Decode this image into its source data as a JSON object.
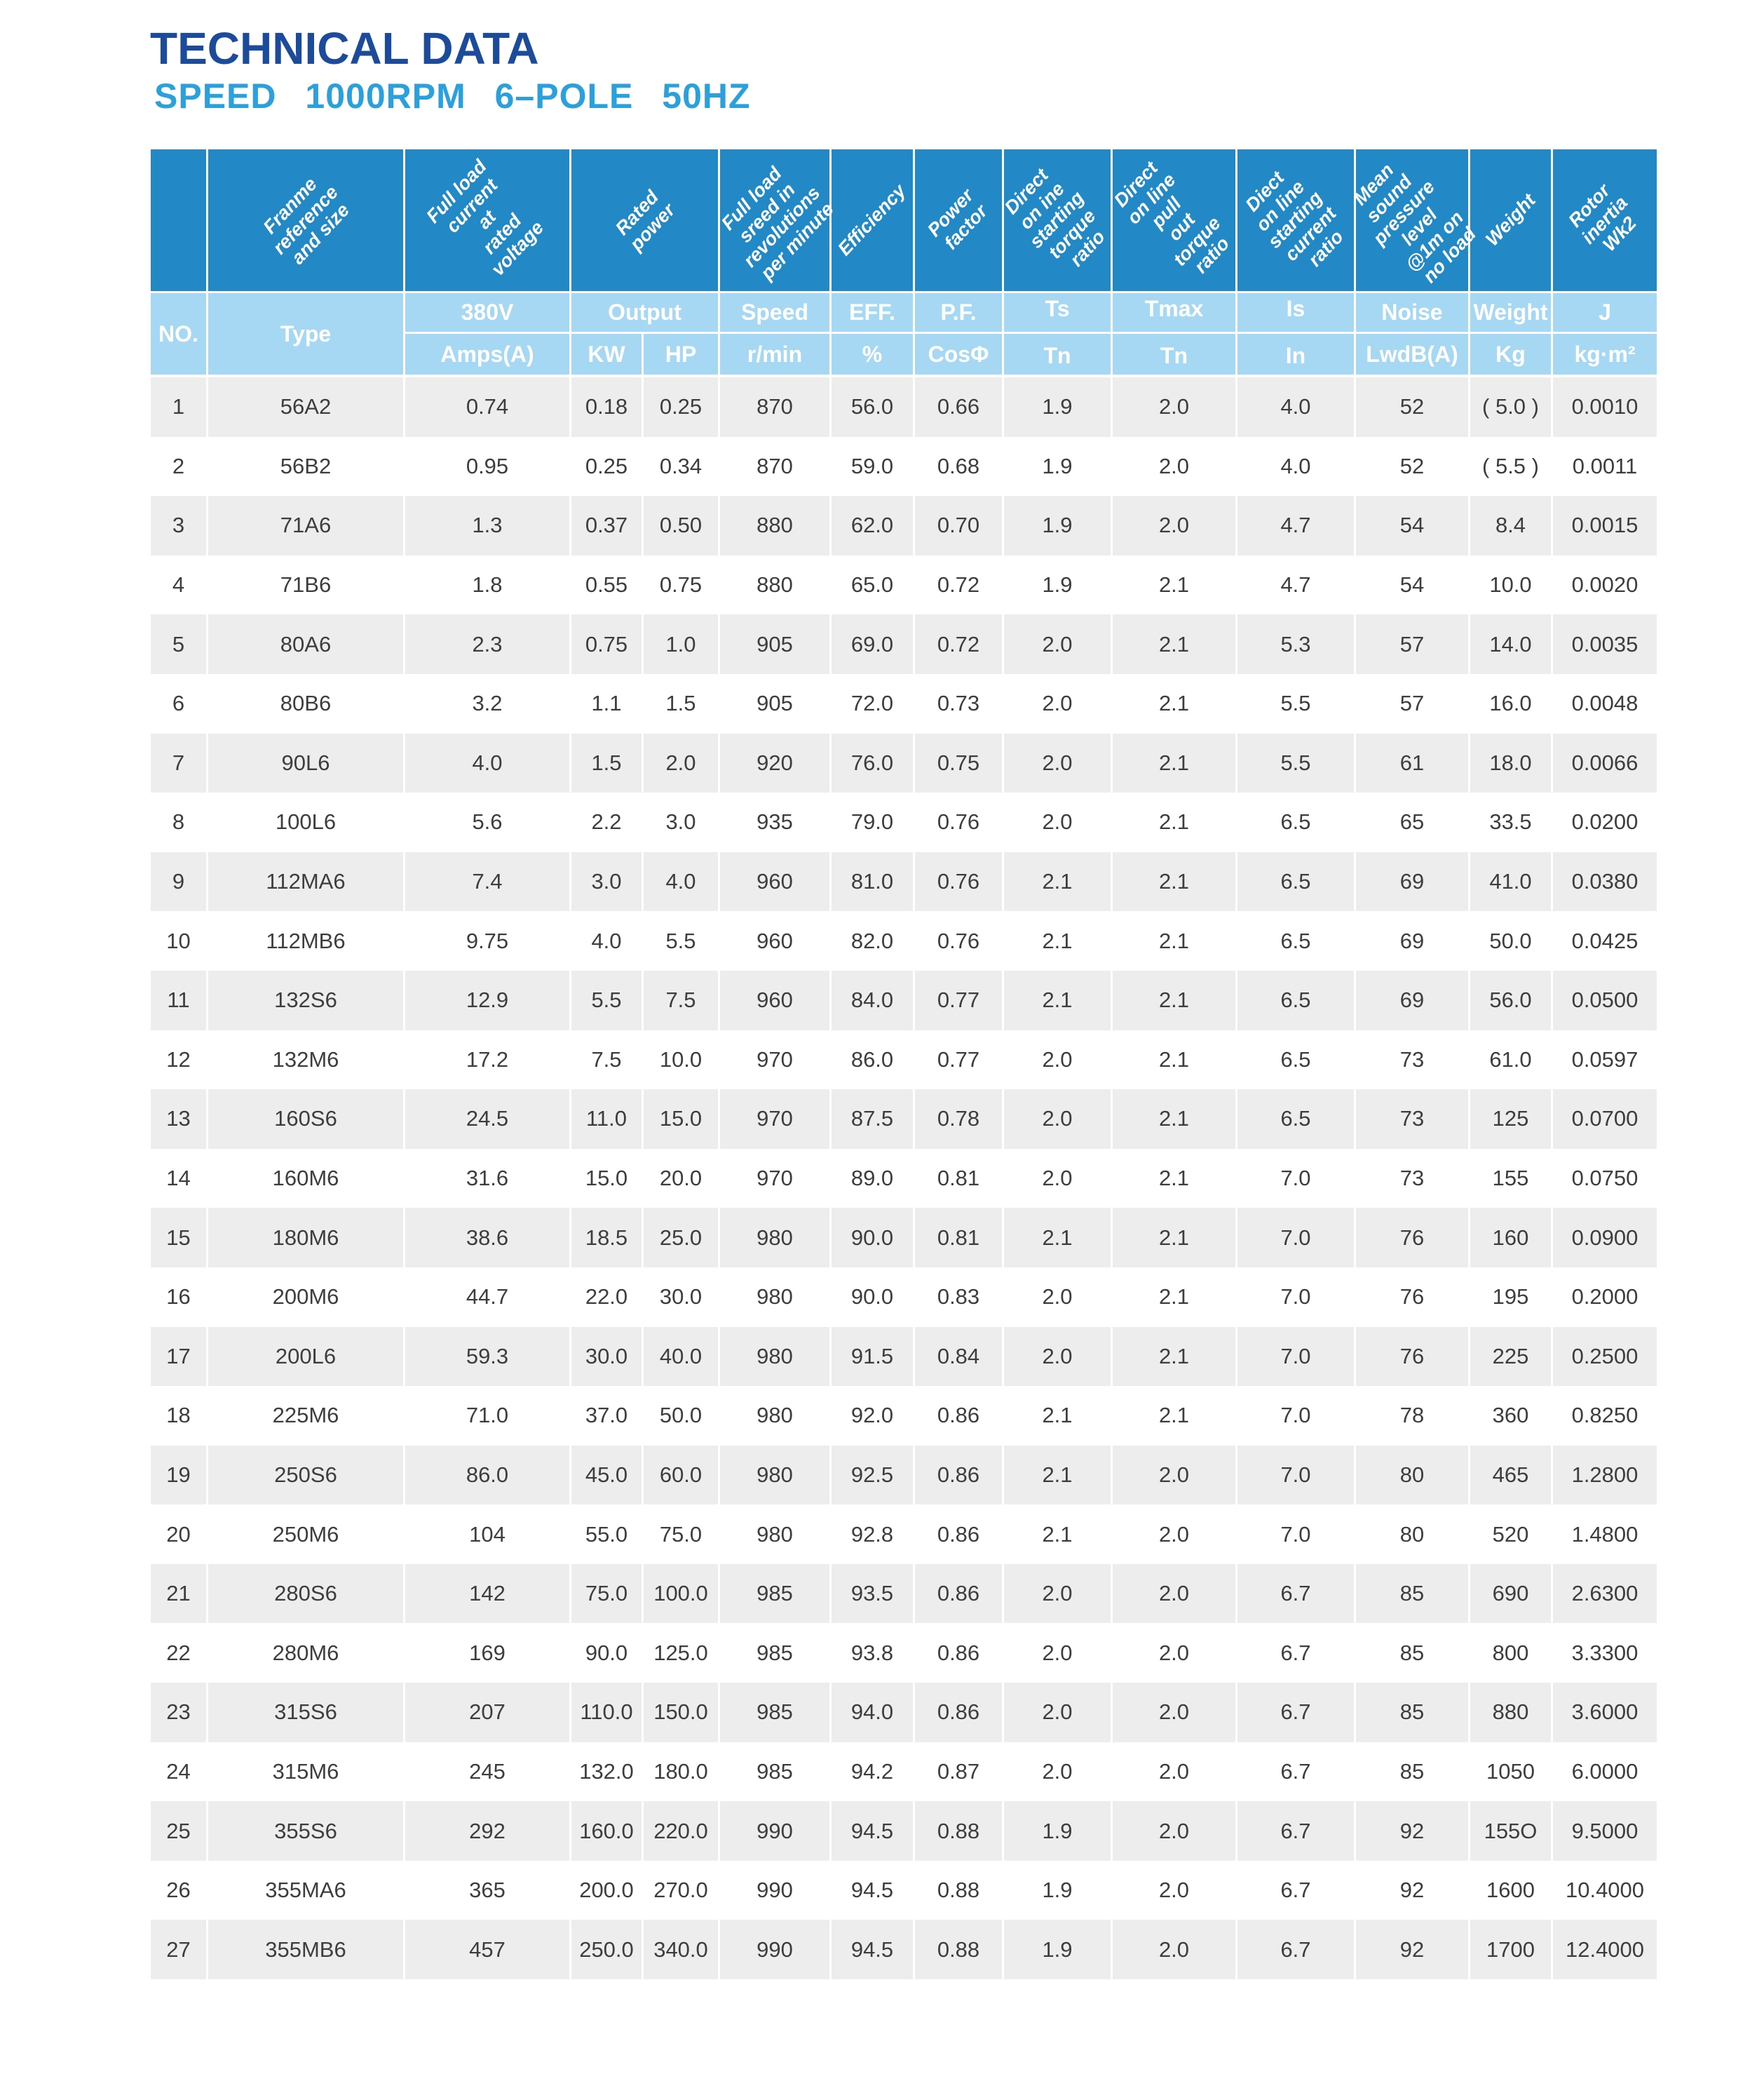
{
  "title": "TECHNICAL DATA",
  "subtitle": "SPEED 1000RPM 6–POLE 50HZ",
  "colors": {
    "title_blue": "#1c4b9c",
    "subtitle_blue": "#2aa0dc",
    "header_band_blue": "#2389c6",
    "subheader_light_blue": "#a6d8f3",
    "row_alt_gray": "#eeedee",
    "data_text": "#3d3d3d"
  },
  "table": {
    "corner": {
      "no": "NO.",
      "type": "Type"
    },
    "diagonal_headers": [
      "Franme reference\nand size",
      "Full load current at\nrated voltage",
      "Rated power",
      "Full load sreed in\nrevolutions\nper minute",
      "Efficiency",
      "Power factor",
      "Direct on ine\nstarting torque\nratio",
      "Direct on line\npull out torque\nratio",
      "Diect on line\nstarting current\nratio",
      "Mean sound\npressure\nlevel @1m on\nno load",
      "Weight",
      "Rotor inertia Wk2"
    ],
    "group_row": [
      "380V",
      "Output",
      "Speed",
      "EFF.",
      "P.F.",
      "Ts",
      "Tmax",
      "Is",
      "Noise",
      "Weight",
      "J"
    ],
    "unit_row": [
      "Amps(A)",
      "KW",
      "HP",
      "r/min",
      "%",
      "CosΦ",
      "Tn",
      "Tn",
      "In",
      "LwdB(A)",
      "Kg",
      "kg·m²"
    ],
    "rows": [
      [
        "1",
        "56A2",
        "0.74",
        "0.18",
        "0.25",
        "870",
        "56.0",
        "0.66",
        "1.9",
        "2.0",
        "4.0",
        "52",
        "( 5.0 )",
        "0.0010"
      ],
      [
        "2",
        "56B2",
        "0.95",
        "0.25",
        "0.34",
        "870",
        "59.0",
        "0.68",
        "1.9",
        "2.0",
        "4.0",
        "52",
        "( 5.5 )",
        "0.0011"
      ],
      [
        "3",
        "71A6",
        "1.3",
        "0.37",
        "0.50",
        "880",
        "62.0",
        "0.70",
        "1.9",
        "2.0",
        "4.7",
        "54",
        "8.4",
        "0.0015"
      ],
      [
        "4",
        "71B6",
        "1.8",
        "0.55",
        "0.75",
        "880",
        "65.0",
        "0.72",
        "1.9",
        "2.1",
        "4.7",
        "54",
        "10.0",
        "0.0020"
      ],
      [
        "5",
        "80A6",
        "2.3",
        "0.75",
        "1.0",
        "905",
        "69.0",
        "0.72",
        "2.0",
        "2.1",
        "5.3",
        "57",
        "14.0",
        "0.0035"
      ],
      [
        "6",
        "80B6",
        "3.2",
        "1.1",
        "1.5",
        "905",
        "72.0",
        "0.73",
        "2.0",
        "2.1",
        "5.5",
        "57",
        "16.0",
        "0.0048"
      ],
      [
        "7",
        "90L6",
        "4.0",
        "1.5",
        "2.0",
        "920",
        "76.0",
        "0.75",
        "2.0",
        "2.1",
        "5.5",
        "61",
        "18.0",
        "0.0066"
      ],
      [
        "8",
        "100L6",
        "5.6",
        "2.2",
        "3.0",
        "935",
        "79.0",
        "0.76",
        "2.0",
        "2.1",
        "6.5",
        "65",
        "33.5",
        "0.0200"
      ],
      [
        "9",
        "112MA6",
        "7.4",
        "3.0",
        "4.0",
        "960",
        "81.0",
        "0.76",
        "2.1",
        "2.1",
        "6.5",
        "69",
        "41.0",
        "0.0380"
      ],
      [
        "10",
        "112MB6",
        "9.75",
        "4.0",
        "5.5",
        "960",
        "82.0",
        "0.76",
        "2.1",
        "2.1",
        "6.5",
        "69",
        "50.0",
        "0.0425"
      ],
      [
        "11",
        "132S6",
        "12.9",
        "5.5",
        "7.5",
        "960",
        "84.0",
        "0.77",
        "2.1",
        "2.1",
        "6.5",
        "69",
        "56.0",
        "0.0500"
      ],
      [
        "12",
        "132M6",
        "17.2",
        "7.5",
        "10.0",
        "970",
        "86.0",
        "0.77",
        "2.0",
        "2.1",
        "6.5",
        "73",
        "61.0",
        "0.0597"
      ],
      [
        "13",
        "160S6",
        "24.5",
        "11.0",
        "15.0",
        "970",
        "87.5",
        "0.78",
        "2.0",
        "2.1",
        "6.5",
        "73",
        "125",
        "0.0700"
      ],
      [
        "14",
        "160M6",
        "31.6",
        "15.0",
        "20.0",
        "970",
        "89.0",
        "0.81",
        "2.0",
        "2.1",
        "7.0",
        "73",
        "155",
        "0.0750"
      ],
      [
        "15",
        "180M6",
        "38.6",
        "18.5",
        "25.0",
        "980",
        "90.0",
        "0.81",
        "2.1",
        "2.1",
        "7.0",
        "76",
        "160",
        "0.0900"
      ],
      [
        "16",
        "200M6",
        "44.7",
        "22.0",
        "30.0",
        "980",
        "90.0",
        "0.83",
        "2.0",
        "2.1",
        "7.0",
        "76",
        "195",
        "0.2000"
      ],
      [
        "17",
        "200L6",
        "59.3",
        "30.0",
        "40.0",
        "980",
        "91.5",
        "0.84",
        "2.0",
        "2.1",
        "7.0",
        "76",
        "225",
        "0.2500"
      ],
      [
        "18",
        "225M6",
        "71.0",
        "37.0",
        "50.0",
        "980",
        "92.0",
        "0.86",
        "2.1",
        "2.1",
        "7.0",
        "78",
        "360",
        "0.8250"
      ],
      [
        "19",
        "250S6",
        "86.0",
        "45.0",
        "60.0",
        "980",
        "92.5",
        "0.86",
        "2.1",
        "2.0",
        "7.0",
        "80",
        "465",
        "1.2800"
      ],
      [
        "20",
        "250M6",
        "104",
        "55.0",
        "75.0",
        "980",
        "92.8",
        "0.86",
        "2.1",
        "2.0",
        "7.0",
        "80",
        "520",
        "1.4800"
      ],
      [
        "21",
        "280S6",
        "142",
        "75.0",
        "100.0",
        "985",
        "93.5",
        "0.86",
        "2.0",
        "2.0",
        "6.7",
        "85",
        "690",
        "2.6300"
      ],
      [
        "22",
        "280M6",
        "169",
        "90.0",
        "125.0",
        "985",
        "93.8",
        "0.86",
        "2.0",
        "2.0",
        "6.7",
        "85",
        "800",
        "3.3300"
      ],
      [
        "23",
        "315S6",
        "207",
        "110.0",
        "150.0",
        "985",
        "94.0",
        "0.86",
        "2.0",
        "2.0",
        "6.7",
        "85",
        "880",
        "3.6000"
      ],
      [
        "24",
        "315M6",
        "245",
        "132.0",
        "180.0",
        "985",
        "94.2",
        "0.87",
        "2.0",
        "2.0",
        "6.7",
        "85",
        "1050",
        "6.0000"
      ],
      [
        "25",
        "355S6",
        "292",
        "160.0",
        "220.0",
        "990",
        "94.5",
        "0.88",
        "1.9",
        "2.0",
        "6.7",
        "92",
        "155O",
        "9.5000"
      ],
      [
        "26",
        "355MA6",
        "365",
        "200.0",
        "270.0",
        "990",
        "94.5",
        "0.88",
        "1.9",
        "2.0",
        "6.7",
        "92",
        "1600",
        "10.4000"
      ],
      [
        "27",
        "355MB6",
        "457",
        "250.0",
        "340.0",
        "990",
        "94.5",
        "0.88",
        "1.9",
        "2.0",
        "6.7",
        "92",
        "1700",
        "12.4000"
      ]
    ]
  }
}
